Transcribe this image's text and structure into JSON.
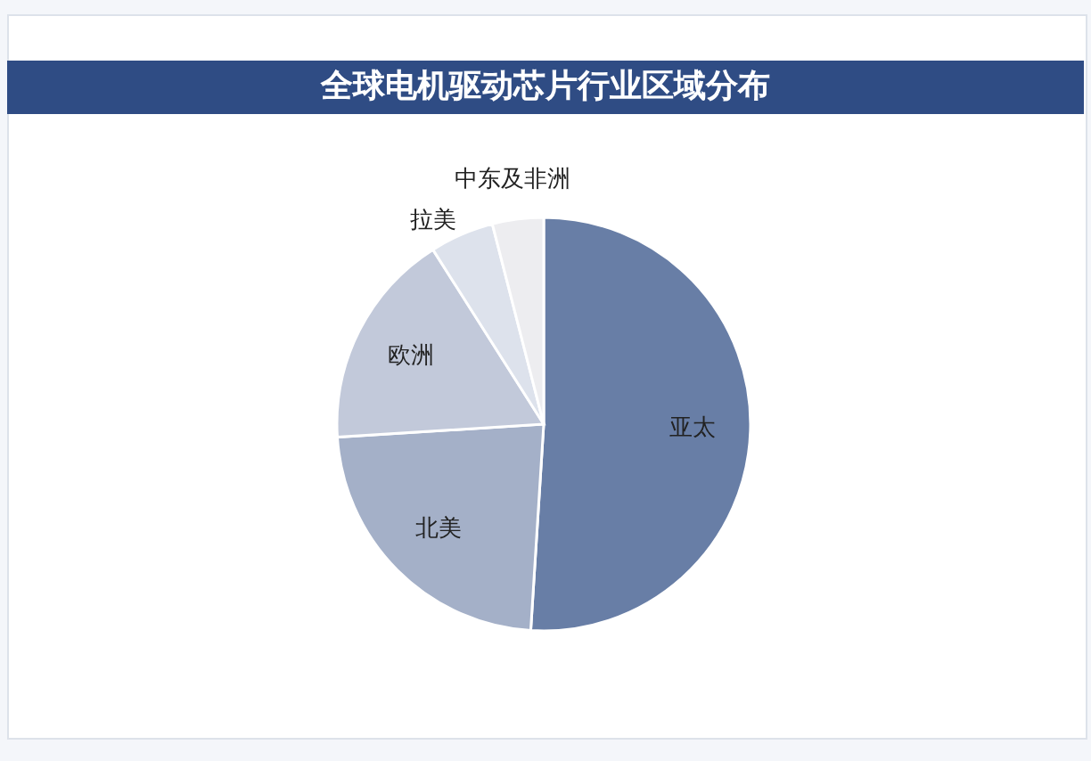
{
  "chart_data": {
    "type": "pie",
    "title": "全球电机驱动芯片行业区域分布",
    "categories": [
      "亚太",
      "北美",
      "欧洲",
      "拉美",
      "中东及非洲"
    ],
    "values": [
      51,
      23,
      17,
      5,
      4
    ],
    "colors": [
      "#687ea6",
      "#a4b0c8",
      "#c2c9da",
      "#dde2ec",
      "#ededf0"
    ],
    "legend": false
  }
}
